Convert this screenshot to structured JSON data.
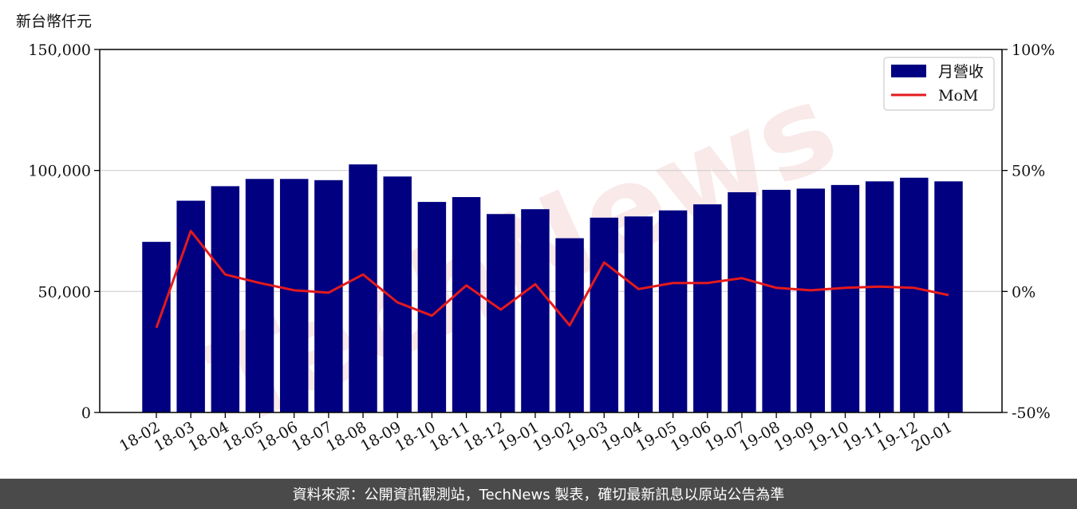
{
  "colors": {
    "bar": "#000080",
    "line": "#e41a1c",
    "footer_bg": "#4a4a4a",
    "watermark": "#f2d0d0"
  },
  "watermark_text": "TechNews",
  "footer": {
    "text": "資料來源：公開資訊觀測站，TechNews 製表，確切最新訊息以原站公告為準"
  },
  "chart_data": {
    "type": "bar",
    "ylabel": "新台幣仟元",
    "ylim": [
      0,
      150000
    ],
    "y2lim": [
      -50,
      100
    ],
    "yticks": [
      "0",
      "50,000",
      "100,000",
      "150,000"
    ],
    "y2ticks": [
      "-50%",
      "0%",
      "50%",
      "100%"
    ],
    "grid": "horizontal",
    "legend": "top-right",
    "categories": [
      "18-02",
      "18-03",
      "18-04",
      "18-05",
      "18-06",
      "18-07",
      "18-08",
      "18-09",
      "18-10",
      "18-11",
      "18-12",
      "19-01",
      "19-02",
      "19-03",
      "19-04",
      "19-05",
      "19-06",
      "19-07",
      "19-08",
      "19-09",
      "19-10",
      "19-11",
      "19-12",
      "20-01"
    ],
    "series": [
      {
        "name": "月營收",
        "type": "bar",
        "axis": "left",
        "values": [
          70500,
          87500,
          93500,
          96500,
          96500,
          96000,
          102500,
          97500,
          87000,
          89000,
          82000,
          84000,
          72000,
          80500,
          81000,
          83500,
          86000,
          91000,
          92000,
          92500,
          94000,
          95500,
          97000,
          95500
        ]
      },
      {
        "name": "MoM",
        "type": "line",
        "axis": "right",
        "values": [
          -15,
          25,
          7,
          3.5,
          0.5,
          -0.5,
          7,
          -4.5,
          -10,
          2.5,
          -7.5,
          3,
          -14,
          12,
          1,
          3.5,
          3.5,
          5.5,
          1.5,
          0.5,
          1.5,
          2,
          1.5,
          -1.5
        ]
      }
    ]
  }
}
